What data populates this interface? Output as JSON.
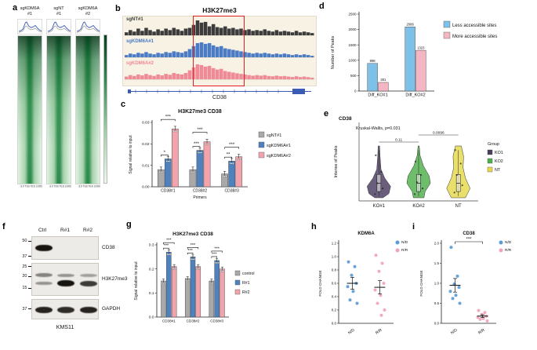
{
  "panel_labels": {
    "a": "a",
    "b": "b",
    "c": "c",
    "d": "d",
    "e": "e",
    "f": "f",
    "g": "g",
    "h": "h",
    "i": "i"
  },
  "a": {
    "columns": [
      {
        "line1": "sgKDM6A",
        "line2": "#1"
      },
      {
        "line1": "sgNT",
        "line2": "#1"
      },
      {
        "line1": "sgKDM6A",
        "line2": "#2"
      }
    ],
    "xticks": "-3.0 TSS TES 3.0Kb",
    "profile_color": "#3b5bb5",
    "profile": [
      [
        0,
        0.25
      ],
      [
        0.08,
        0.3
      ],
      [
        0.18,
        0.45
      ],
      [
        0.28,
        0.95
      ],
      [
        0.33,
        1.0
      ],
      [
        0.42,
        0.68
      ],
      [
        0.52,
        0.55
      ],
      [
        0.62,
        0.62
      ],
      [
        0.7,
        0.72
      ],
      [
        0.8,
        0.5
      ],
      [
        0.9,
        0.33
      ],
      [
        1,
        0.27
      ]
    ]
  },
  "b": {
    "title": "H3K27me3",
    "gene": "CD38",
    "highlight_color": "#e02020",
    "tracks": [
      {
        "name": "sgNT#1",
        "color": "#3c3c3c",
        "bins": [
          0.2,
          0.35,
          0.25,
          0.45,
          0.3,
          0.5,
          0.35,
          0.25,
          0.4,
          0.3,
          0.45,
          0.35,
          0.5,
          0.4,
          0.3,
          0.45,
          0.5,
          0.7,
          1.0,
          0.85,
          0.9,
          0.6,
          0.75,
          0.55,
          0.5,
          0.6,
          0.45,
          0.5,
          0.4,
          0.45,
          0.35,
          0.4,
          0.3,
          0.35,
          0.3,
          0.4,
          0.3,
          0.25,
          0.35,
          0.25,
          0.3,
          0.25,
          0.2,
          0.3,
          0.2,
          0.25,
          0.2,
          0.15
        ]
      },
      {
        "name": "sgKDM6A#1",
        "color": "#4a7bc4",
        "bins": [
          0.15,
          0.25,
          0.2,
          0.3,
          0.25,
          0.35,
          0.25,
          0.2,
          0.3,
          0.25,
          0.35,
          0.3,
          0.4,
          0.35,
          0.3,
          0.4,
          0.55,
          0.75,
          0.95,
          1.0,
          0.9,
          0.95,
          0.8,
          0.7,
          0.75,
          0.6,
          0.55,
          0.5,
          0.45,
          0.4,
          0.35,
          0.3,
          0.25,
          0.3,
          0.25,
          0.3,
          0.25,
          0.2,
          0.25,
          0.2,
          0.25,
          0.2,
          0.15,
          0.2,
          0.15,
          0.2,
          0.15,
          0.1
        ]
      },
      {
        "name": "sgKDM6A#2",
        "color": "#ef8a96",
        "bins": [
          0.18,
          0.28,
          0.22,
          0.32,
          0.26,
          0.36,
          0.28,
          0.22,
          0.32,
          0.26,
          0.36,
          0.3,
          0.42,
          0.36,
          0.32,
          0.42,
          0.6,
          0.8,
          1.0,
          0.95,
          0.85,
          0.9,
          0.75,
          0.65,
          0.7,
          0.55,
          0.5,
          0.45,
          0.4,
          0.36,
          0.32,
          0.28,
          0.24,
          0.28,
          0.24,
          0.28,
          0.22,
          0.2,
          0.24,
          0.2,
          0.22,
          0.18,
          0.15,
          0.2,
          0.15,
          0.18,
          0.14,
          0.1
        ]
      }
    ]
  },
  "f": {
    "lanes": [
      "Ctrl",
      "R#1",
      "R#2"
    ],
    "cell_line": "KMS11",
    "blots": [
      {
        "name": "CD38",
        "markers": [
          {
            "t": "50",
            "f": 0.22
          },
          {
            "t": "37",
            "f": 0.88
          }
        ],
        "rows": [
          {
            "y": 0.45,
            "bands": [
              1.0,
              0.04,
              0.04
            ]
          }
        ]
      },
      {
        "name": "H3K27me3",
        "markers": [
          {
            "t": "25",
            "f": 0.12
          },
          {
            "t": "20",
            "f": 0.42
          },
          {
            "t": "15",
            "f": 0.78
          }
        ],
        "rows": [
          {
            "y": 0.35,
            "bands": [
              0.3,
              0.2,
              0.12
            ]
          },
          {
            "y": 0.6,
            "bands": [
              0.2,
              1.0,
              0.75
            ]
          }
        ]
      },
      {
        "name": "GAPDH",
        "markers": [
          {
            "t": "37",
            "f": 0.5
          }
        ],
        "rows": [
          {
            "y": 0.5,
            "bands": [
              0.9,
              0.85,
              0.9
            ]
          }
        ]
      }
    ]
  },
  "chart_data": {
    "c": {
      "type": "bar",
      "title": "H3K27me3 CD38",
      "ylabel": "Signal relative to input",
      "xlabel": "Primers",
      "ylim": [
        0,
        0.03
      ],
      "yticks": [
        {
          "v": 0,
          "s": "0.00"
        },
        {
          "v": 0.01,
          "s": "0.01"
        },
        {
          "v": 0.02,
          "s": "0.02"
        },
        {
          "v": 0.03,
          "s": "0.03"
        }
      ],
      "categories": [
        "CD38#1",
        "CD38#2",
        "CD38#3"
      ],
      "series": [
        {
          "name": "sgNT#1",
          "color": "#a9a9a9",
          "values": [
            0.008,
            0.008,
            0.006
          ]
        },
        {
          "name": "sgKDM6A#1",
          "color": "#4f81bd",
          "values": [
            0.013,
            0.017,
            0.012
          ]
        },
        {
          "name": "sgKDM6A#2",
          "color": "#f2a3ab",
          "values": [
            0.027,
            0.021,
            0.014
          ]
        }
      ],
      "significance": [
        [
          "*",
          "***"
        ],
        [
          "***",
          "***"
        ],
        [
          "**",
          "***"
        ]
      ]
    },
    "d": {
      "type": "bar",
      "ylabel": "Number of Peaks",
      "ylim": [
        0,
        2500
      ],
      "yticks": [
        {
          "v": 0,
          "s": "0"
        },
        {
          "v": 500,
          "s": "500"
        },
        {
          "v": 1000,
          "s": "1000"
        },
        {
          "v": 1500,
          "s": "1500"
        },
        {
          "v": 2000,
          "s": "2000"
        },
        {
          "v": 2500,
          "s": "2500"
        }
      ],
      "categories": [
        "Diff_KO#1",
        "Diff_KO#2"
      ],
      "series": [
        {
          "name": "Less accessible sites",
          "color": "#7fc0e8",
          "values": [
            898,
            2086
          ]
        },
        {
          "name": "More accessible sites",
          "color": "#f4b6c2",
          "values": [
            281,
            1323
          ]
        }
      ],
      "show_values": true
    },
    "e": {
      "type": "violin",
      "title": "CD38",
      "stat": "Kruskal-Wallis, p=0.031",
      "ylabel": "Intense of Peaks",
      "categories": [
        "KO#1",
        "KO#2",
        "NT"
      ],
      "colors": [
        "#4a3b5f",
        "#4daf4a",
        "#e6d84a"
      ],
      "legend_title": "Group",
      "legend": [
        "KO1",
        "KO2",
        "NT"
      ],
      "pairwise": [
        {
          "groups": [
            0,
            1
          ],
          "p": "0.11"
        },
        {
          "groups": [
            1,
            2
          ],
          "p": "0.0096"
        }
      ],
      "shapes": [
        [
          [
            0,
            0.06
          ],
          [
            0.2,
            0.1
          ],
          [
            0.45,
            0.18
          ],
          [
            0.62,
            0.5
          ],
          [
            0.78,
            1.0
          ],
          [
            0.92,
            0.85
          ],
          [
            1,
            0.35
          ]
        ],
        [
          [
            0,
            0.05
          ],
          [
            0.18,
            0.12
          ],
          [
            0.38,
            0.4
          ],
          [
            0.58,
            0.9
          ],
          [
            0.72,
            1.0
          ],
          [
            0.88,
            0.55
          ],
          [
            1,
            0.45
          ]
        ],
        [
          [
            0,
            0.25
          ],
          [
            0.2,
            0.45
          ],
          [
            0.42,
            0.4
          ],
          [
            0.62,
            0.6
          ],
          [
            0.82,
            1.0
          ],
          [
            1,
            0.6
          ]
        ]
      ],
      "points": [
        [
          0.18,
          0.5,
          0.72,
          0.82,
          0.93
        ],
        [
          0.3,
          0.56,
          0.7,
          0.82,
          0.93
        ],
        [
          0.08,
          0.34,
          0.56,
          0.76,
          0.9
        ]
      ]
    },
    "g": {
      "type": "bar",
      "title": "H3K27me3 CD38",
      "ylabel": "Signal relative to input",
      "ylim": [
        0,
        0.3
      ],
      "yticks": [
        {
          "v": 0,
          "s": "0.0"
        },
        {
          "v": 0.1,
          "s": "0.1"
        },
        {
          "v": 0.2,
          "s": "0.2"
        },
        {
          "v": 0.3,
          "s": "0.3"
        }
      ],
      "categories": [
        "CD38#1",
        "CD38#2",
        "CD38#3"
      ],
      "series": [
        {
          "name": "control",
          "color": "#a9a9a9",
          "values": [
            0.15,
            0.16,
            0.15
          ]
        },
        {
          "name": "R#1",
          "color": "#4f81bd",
          "values": [
            0.27,
            0.25,
            0.235
          ]
        },
        {
          "name": "R#2",
          "color": "#f2a3ab",
          "values": [
            0.21,
            0.21,
            0.2
          ]
        }
      ],
      "significance": [
        [
          "***",
          "***"
        ],
        [
          "***",
          "***"
        ],
        [
          "***",
          "***"
        ]
      ]
    },
    "h": {
      "type": "scatter",
      "title": "KDM6A",
      "ylabel": "FOLD CHANGE",
      "ylim": [
        0,
        1.2
      ],
      "yticks": [
        {
          "v": 0,
          "s": "0.0"
        },
        {
          "v": 0.2,
          "s": "0.2"
        },
        {
          "v": 0.4,
          "s": "0.4"
        },
        {
          "v": 0.6,
          "s": "0.6"
        },
        {
          "v": 0.8,
          "s": "0.8"
        },
        {
          "v": 1.0,
          "s": "1.0"
        },
        {
          "v": 1.2,
          "s": "1.2"
        }
      ],
      "groups": [
        {
          "name": "N/D",
          "color": "#5b9bd5",
          "points": [
            0.92,
            0.85,
            0.72,
            0.6,
            0.55,
            0.48,
            0.35,
            0.3
          ],
          "mean": 0.6,
          "sem": 0.09
        },
        {
          "name": "R/R",
          "color": "#f2a3b5",
          "points": [
            1.02,
            0.9,
            0.78,
            0.6,
            0.5,
            0.42,
            0.3,
            0.2,
            0.12
          ],
          "mean": 0.54,
          "sem": 0.1
        }
      ]
    },
    "i": {
      "type": "scatter",
      "title": "CD38",
      "significance": "***",
      "ylabel": "FOLD CHANGE",
      "ylim": [
        0,
        2.0
      ],
      "yticks": [
        {
          "v": 0,
          "s": "0.0"
        },
        {
          "v": 0.5,
          "s": "0.5"
        },
        {
          "v": 1.0,
          "s": "1.0"
        },
        {
          "v": 1.5,
          "s": "1.5"
        },
        {
          "v": 2.0,
          "s": "2.0"
        }
      ],
      "groups": [
        {
          "name": "N/D",
          "color": "#5b9bd5",
          "points": [
            1.9,
            1.18,
            0.98,
            0.9,
            0.8,
            0.7,
            0.62,
            0.5
          ],
          "mean": 0.95,
          "sem": 0.17
        },
        {
          "name": "R/R",
          "color": "#f2a3b5",
          "points": [
            0.32,
            0.27,
            0.22,
            0.18,
            0.15,
            0.12,
            0.1,
            0.06
          ],
          "mean": 0.18,
          "sem": 0.035
        }
      ]
    }
  }
}
